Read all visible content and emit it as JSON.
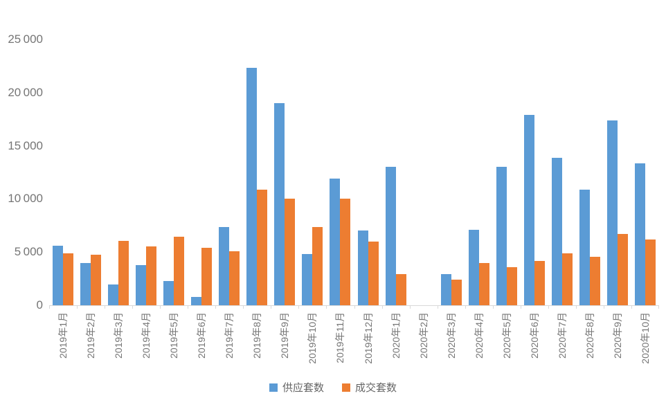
{
  "chart_data": {
    "type": "bar",
    "title": "",
    "xlabel": "",
    "ylabel": "",
    "ylim": [
      0,
      25000
    ],
    "ytick_interval": 5000,
    "ytick_labels": [
      "0",
      "5 000",
      "10 000",
      "15 000",
      "20 000",
      "25 000"
    ],
    "grid": false,
    "legend_position": "bottom",
    "axis_color": "#d9d9d9",
    "label_text_color": "#757575",
    "categories": [
      "2019年1月",
      "2019年2月",
      "2019年3月",
      "2019年4月",
      "2019年5月",
      "2019年6月",
      "2019年7月",
      "2019年8月",
      "2019年9月",
      "2019年10月",
      "2019年11月",
      "2019年12月",
      "2020年1月",
      "2020年2月",
      "2020年3月",
      "2020年4月",
      "2020年5月",
      "2020年6月",
      "2020年7月",
      "2020年8月",
      "2020年9月",
      "2020年10月"
    ],
    "series": [
      {
        "key": "supply",
        "name": "供应套数",
        "color": "#5b9bd5",
        "values": [
          5600,
          4000,
          1950,
          3750,
          2300,
          750,
          7350,
          22350,
          19000,
          4800,
          11900,
          7000,
          13000,
          0,
          2900,
          7100,
          13000,
          17900,
          13900,
          10900,
          17400,
          13350
        ]
      },
      {
        "key": "sold",
        "name": "成交套数",
        "color": "#ed7d31",
        "values": [
          4900,
          4750,
          6050,
          5550,
          6450,
          5400,
          5100,
          10900,
          10000,
          7350,
          10000,
          6000,
          2900,
          0,
          2400,
          4000,
          3550,
          4200,
          4900,
          4550,
          6700,
          6200
        ]
      }
    ]
  }
}
